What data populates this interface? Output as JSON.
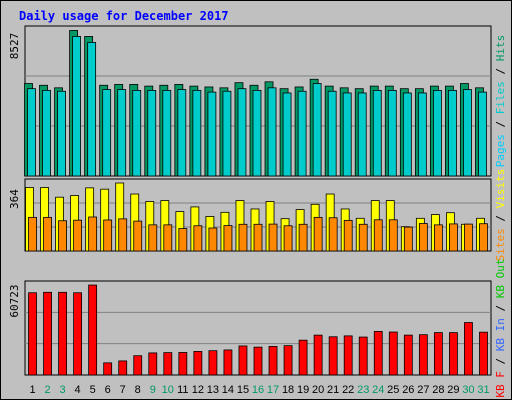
{
  "title": "Daily usage for December 2017",
  "colors": {
    "hits": "#009966",
    "files": "#00cccc",
    "pages": "#00ccff",
    "visits": "#ffff00",
    "sites": "#ff8800",
    "kbin": "#3366ff",
    "kbout": "#00cc00",
    "kbf": "#ff0000",
    "weekend_day": "#009966",
    "weekday": "#000000"
  },
  "chart_data": [
    {
      "type": "bar",
      "name": "hits-files-pages",
      "ymax_label": "8527",
      "ylim": [
        0,
        8527
      ],
      "x": [
        1,
        2,
        3,
        4,
        5,
        6,
        7,
        8,
        9,
        10,
        11,
        12,
        13,
        14,
        15,
        16,
        17,
        18,
        19,
        20,
        21,
        22,
        23,
        24,
        25,
        26,
        27,
        28,
        29,
        30,
        31
      ],
      "legend": [
        "Hits",
        "Files",
        "Pages"
      ],
      "series": [
        {
          "name": "Hits",
          "values": [
            5400,
            5300,
            5150,
            8500,
            8150,
            5300,
            5350,
            5350,
            5250,
            5300,
            5350,
            5250,
            5200,
            5150,
            5450,
            5300,
            5500,
            5100,
            5200,
            5650,
            5250,
            5150,
            5100,
            5250,
            5250,
            5100,
            5100,
            5250,
            5250,
            5400,
            5150
          ]
        },
        {
          "name": "Files",
          "values": [
            5100,
            5000,
            4950,
            8150,
            7800,
            5050,
            5050,
            5000,
            5000,
            5000,
            5050,
            5000,
            4900,
            4950,
            5100,
            5000,
            5150,
            4850,
            4950,
            5400,
            4950,
            4850,
            4850,
            5000,
            5000,
            4850,
            4850,
            5000,
            5000,
            5050,
            4900
          ]
        },
        {
          "name": "Pages",
          "values": [
            5100,
            5000,
            4950,
            8150,
            7800,
            5050,
            5050,
            5000,
            5000,
            5000,
            5050,
            5000,
            4900,
            4950,
            5100,
            5000,
            5150,
            4850,
            4950,
            5400,
            4950,
            4850,
            4850,
            5000,
            5000,
            4850,
            4850,
            5000,
            5000,
            5050,
            4900
          ]
        }
      ]
    },
    {
      "type": "bar",
      "name": "visits-sites",
      "ymax_label": "364",
      "ylim": [
        0,
        364
      ],
      "x": [
        1,
        2,
        3,
        4,
        5,
        6,
        7,
        8,
        9,
        10,
        11,
        12,
        13,
        14,
        15,
        16,
        17,
        18,
        19,
        20,
        21,
        22,
        23,
        24,
        25,
        26,
        27,
        28,
        29,
        30,
        31
      ],
      "legend": [
        "Visits",
        "Sites"
      ],
      "series": [
        {
          "name": "Visits",
          "values": [
            340,
            340,
            288,
            297,
            338,
            331,
            364,
            305,
            265,
            270,
            211,
            236,
            185,
            207,
            270,
            225,
            265,
            173,
            222,
            250,
            305,
            225,
            175,
            270,
            270,
            130,
            175,
            195,
            205,
            143,
            175
          ]
        },
        {
          "name": "Sites",
          "values": [
            180,
            180,
            162,
            165,
            182,
            166,
            172,
            160,
            140,
            140,
            120,
            135,
            123,
            136,
            143,
            143,
            144,
            135,
            143,
            180,
            178,
            164,
            143,
            167,
            167,
            128,
            147,
            140,
            145,
            144,
            146
          ]
        }
      ]
    },
    {
      "type": "bar",
      "name": "kbf-kbin-kbout",
      "ymax_label": "60723",
      "ylim": [
        0,
        60723
      ],
      "x": [
        1,
        2,
        3,
        4,
        5,
        6,
        7,
        8,
        9,
        10,
        11,
        12,
        13,
        14,
        15,
        16,
        17,
        18,
        19,
        20,
        21,
        22,
        23,
        24,
        25,
        26,
        27,
        28,
        29,
        30,
        31
      ],
      "legend": [
        "KB F",
        "KB In",
        "KB Out"
      ],
      "series": [
        {
          "name": "KB F",
          "values": [
            55500,
            55800,
            55800,
            55500,
            60700,
            8200,
            9500,
            13000,
            14900,
            15100,
            15200,
            15900,
            16400,
            16900,
            19600,
            18800,
            19300,
            19800,
            23500,
            26900,
            25800,
            26400,
            25600,
            29400,
            29000,
            26900,
            27200,
            28600,
            28600,
            35400,
            28900
          ]
        },
        {
          "name": "KB In",
          "values": [
            0,
            0,
            0,
            0,
            0,
            0,
            0,
            0,
            0,
            0,
            0,
            0,
            0,
            0,
            0,
            0,
            0,
            0,
            0,
            0,
            0,
            0,
            0,
            0,
            0,
            0,
            0,
            0,
            0,
            0,
            0
          ]
        },
        {
          "name": "KB Out",
          "values": [
            0,
            0,
            0,
            0,
            0,
            0,
            0,
            0,
            0,
            0,
            0,
            0,
            0,
            0,
            0,
            0,
            0,
            0,
            0,
            0,
            0,
            0,
            0,
            0,
            0,
            0,
            0,
            0,
            0,
            0,
            0
          ]
        }
      ]
    }
  ],
  "weekend_days": [
    2,
    3,
    9,
    10,
    16,
    17,
    23,
    24,
    30,
    31
  ]
}
